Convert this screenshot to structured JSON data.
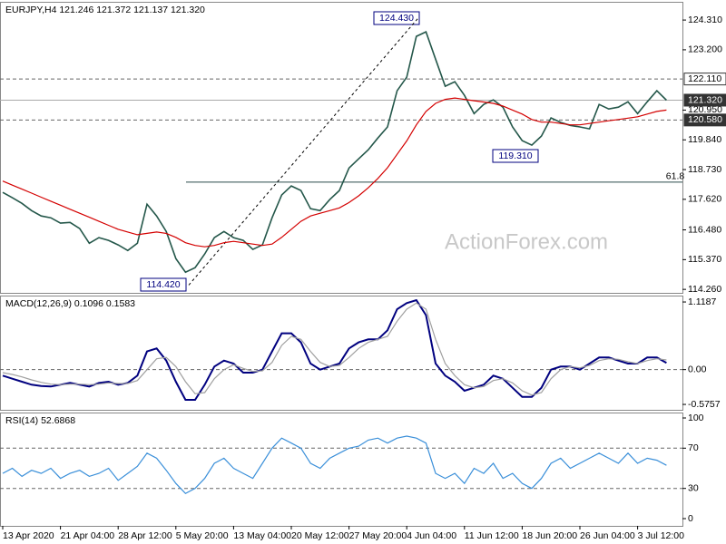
{
  "watermark": "ActionForex.com",
  "chart_data": [
    {
      "type": "line",
      "title": "EURJPY,H4  121.246 121.372 121.137 121.320",
      "series": [
        {
          "color": "#24574a",
          "values": [
            117.88,
            117.68,
            117.47,
            117.2,
            117.0,
            116.93,
            116.73,
            116.76,
            116.53,
            115.98,
            116.19,
            116.09,
            115.92,
            115.71,
            115.98,
            117.44,
            117.0,
            116.42,
            115.41,
            114.9,
            115.07,
            115.58,
            116.19,
            116.42,
            116.19,
            116.09,
            115.75,
            115.92,
            116.93,
            117.78,
            118.12,
            117.95,
            117.27,
            117.2,
            117.61,
            117.95,
            118.79,
            119.13,
            119.47,
            119.91,
            120.32,
            121.67,
            122.18,
            123.7,
            123.87,
            122.85,
            121.84,
            122.01,
            121.5,
            120.82,
            121.16,
            121.33,
            121.06,
            120.32,
            119.81,
            119.64,
            119.98,
            120.66,
            120.49,
            120.38,
            120.32,
            120.25,
            121.16,
            120.99,
            121.06,
            121.26,
            120.82,
            121.26,
            121.67,
            121.32
          ]
        },
        {
          "color": "#d40000",
          "values": [
            118.3,
            118.15,
            118.0,
            117.85,
            117.7,
            117.55,
            117.4,
            117.25,
            117.1,
            116.95,
            116.8,
            116.65,
            116.5,
            116.4,
            116.3,
            116.35,
            116.4,
            116.35,
            116.2,
            116.0,
            115.9,
            115.85,
            115.9,
            116.0,
            116.05,
            116.0,
            115.95,
            115.9,
            115.95,
            116.2,
            116.5,
            116.8,
            117.0,
            117.1,
            117.2,
            117.3,
            117.5,
            117.75,
            118.05,
            118.4,
            118.8,
            119.3,
            119.8,
            120.4,
            120.9,
            121.2,
            121.35,
            121.4,
            121.35,
            121.3,
            121.25,
            121.2,
            121.1,
            120.95,
            120.8,
            120.6,
            120.5,
            120.5,
            120.45,
            120.4,
            120.4,
            120.45,
            120.5,
            120.55,
            120.6,
            120.65,
            120.7,
            120.8,
            120.9,
            120.95
          ]
        }
      ],
      "ylim": [
        114.13,
        124.99
      ],
      "yticks": [
        {
          "value": 124.31,
          "label": "124.310"
        },
        {
          "value": 123.2,
          "label": "123.200"
        },
        {
          "value": 120.95,
          "label": "120.950"
        },
        {
          "value": 119.84,
          "label": "119.840"
        },
        {
          "value": 118.73,
          "label": "118.730"
        },
        {
          "value": 117.62,
          "label": "117.620"
        },
        {
          "value": 116.48,
          "label": "116.480"
        },
        {
          "value": 115.37,
          "label": "115.370"
        },
        {
          "value": 114.26,
          "label": "114.260"
        }
      ],
      "levels": [
        {
          "value": 122.11,
          "label": "122.110",
          "dashed": true,
          "highlight": false
        },
        {
          "value": 121.32,
          "label": "121.320",
          "dashed": false,
          "highlight": true
        },
        {
          "value": 120.58,
          "label": "120.580",
          "dashed": true,
          "highlight": true
        }
      ],
      "annotations": [
        {
          "value": 124.43,
          "label": "124.430"
        },
        {
          "value": 119.31,
          "label": "119.310"
        },
        {
          "value": 114.42,
          "label": "114.420"
        },
        {
          "value": 118.26,
          "label": "61.8"
        }
      ]
    },
    {
      "type": "line",
      "title": "MACD(12,26,9) 0.1096 0.1583",
      "series": [
        {
          "color": "#00007f",
          "values": [
            -0.1,
            -0.15,
            -0.2,
            -0.25,
            -0.27,
            -0.28,
            -0.25,
            -0.22,
            -0.25,
            -0.28,
            -0.22,
            -0.2,
            -0.25,
            -0.22,
            -0.1,
            0.3,
            0.35,
            0.15,
            -0.2,
            -0.5,
            -0.5,
            -0.25,
            0.05,
            0.15,
            0.1,
            -0.05,
            -0.05,
            0.0,
            0.3,
            0.6,
            0.6,
            0.45,
            0.1,
            0.0,
            0.05,
            0.1,
            0.35,
            0.45,
            0.5,
            0.5,
            0.65,
            1.0,
            1.1,
            1.15,
            0.9,
            0.1,
            -0.1,
            -0.2,
            -0.35,
            -0.3,
            -0.25,
            -0.1,
            -0.15,
            -0.3,
            -0.45,
            -0.45,
            -0.3,
            0.0,
            0.05,
            0.05,
            0.0,
            0.1,
            0.2,
            0.2,
            0.15,
            0.1,
            0.1,
            0.2,
            0.2,
            0.11
          ]
        },
        {
          "color": "#a0a0a0",
          "values": [
            -0.05,
            -0.08,
            -0.12,
            -0.17,
            -0.21,
            -0.24,
            -0.25,
            -0.24,
            -0.24,
            -0.25,
            -0.24,
            -0.22,
            -0.23,
            -0.23,
            -0.18,
            0.0,
            0.18,
            0.2,
            0.05,
            -0.2,
            -0.4,
            -0.38,
            -0.15,
            0.0,
            0.08,
            0.02,
            -0.03,
            -0.02,
            0.12,
            0.4,
            0.55,
            0.5,
            0.3,
            0.12,
            0.05,
            0.07,
            0.2,
            0.35,
            0.45,
            0.5,
            0.55,
            0.8,
            1.0,
            1.1,
            1.0,
            0.5,
            0.1,
            -0.1,
            -0.25,
            -0.3,
            -0.28,
            -0.18,
            -0.15,
            -0.22,
            -0.35,
            -0.42,
            -0.38,
            -0.15,
            0.0,
            0.05,
            0.03,
            0.07,
            0.15,
            0.18,
            0.17,
            0.13,
            0.1,
            0.15,
            0.18,
            0.16
          ]
        }
      ],
      "ylim": [
        -0.665,
        1.2245
      ],
      "yticks": [
        1.1187,
        {
          "value": 0,
          "label": "0.00"
        },
        -0.5757
      ],
      "levels": [
        {
          "value": 0,
          "dashed": true
        }
      ]
    },
    {
      "type": "line",
      "title": "RSI(14) 52.6868",
      "series": [
        {
          "color": "#3a8fd9",
          "values": [
            45,
            50,
            42,
            48,
            45,
            50,
            40,
            45,
            48,
            42,
            45,
            50,
            38,
            45,
            52,
            65,
            60,
            48,
            35,
            25,
            30,
            40,
            55,
            60,
            50,
            45,
            40,
            55,
            70,
            80,
            75,
            70,
            55,
            50,
            60,
            65,
            70,
            72,
            78,
            80,
            75,
            80,
            82,
            80,
            75,
            45,
            40,
            45,
            35,
            50,
            45,
            55,
            40,
            45,
            35,
            30,
            40,
            55,
            60,
            50,
            55,
            60,
            65,
            60,
            55,
            65,
            55,
            60,
            58,
            53
          ]
        }
      ],
      "ylim": [
        -7.2,
        105.4
      ],
      "yticks": [
        100,
        70,
        30,
        0
      ],
      "levels": [
        {
          "value": 70,
          "dashed": true
        },
        {
          "value": 30,
          "dashed": true
        }
      ],
      "categories": [
        "13 Apr 2020",
        null,
        null,
        null,
        null,
        null,
        "21 Apr 04:00",
        null,
        null,
        null,
        null,
        null,
        "28 Apr 12:00",
        null,
        null,
        null,
        null,
        null,
        "5 May 20:00",
        null,
        null,
        null,
        null,
        null,
        "13 May 04:00",
        null,
        null,
        null,
        null,
        null,
        "20 May 12:00",
        null,
        null,
        null,
        null,
        null,
        "27 May 20:00",
        null,
        null,
        null,
        null,
        null,
        "4 Jun 04:00",
        null,
        null,
        null,
        null,
        null,
        "11 Jun 12:00",
        null,
        null,
        null,
        null,
        null,
        "18 Jun 20:00",
        null,
        null,
        null,
        null,
        null,
        "26 Jun 04:00",
        null,
        null,
        null,
        null,
        null,
        "3 Jul 12:00",
        null,
        null,
        null
      ]
    }
  ]
}
